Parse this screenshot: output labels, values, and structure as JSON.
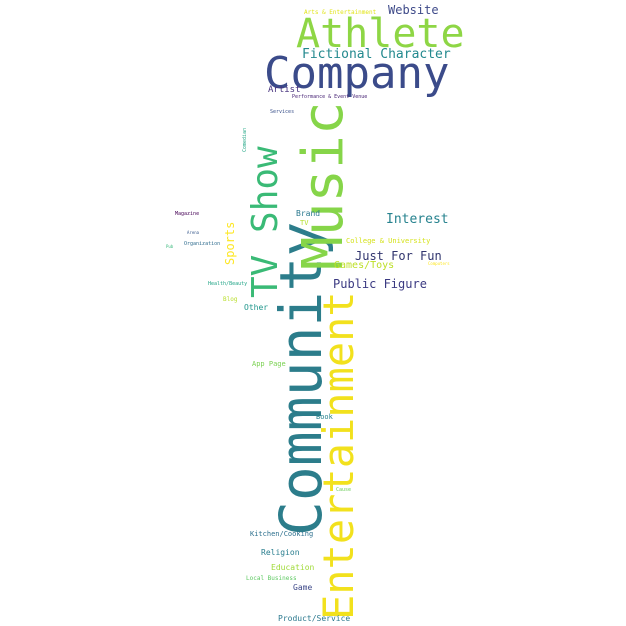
{
  "wordcloud": {
    "words": [
      {
        "text": "Community",
        "color": "#2c7d8b"
      },
      {
        "text": "Entertainment",
        "color": "#f2e11d"
      },
      {
        "text": "Music",
        "color": "#86d549"
      },
      {
        "text": "Company",
        "color": "#3b4b8a"
      },
      {
        "text": "Athlete",
        "color": "#8ed645"
      },
      {
        "text": "TV Show",
        "color": "#3aba76"
      },
      {
        "text": "Fictional Character",
        "color": "#23898e"
      },
      {
        "text": "Website",
        "color": "#3e4a89"
      },
      {
        "text": "Arts & Entertainment",
        "color": "#e2e418"
      },
      {
        "text": "Artist",
        "color": "#46327e"
      },
      {
        "text": "Performance & Event Venue",
        "color": "#482475"
      },
      {
        "text": "Services",
        "color": "#3b528b"
      },
      {
        "text": "Comedian",
        "color": "#21a685"
      },
      {
        "text": "Interest",
        "color": "#26828e"
      },
      {
        "text": "Just For Fun",
        "color": "#31356e"
      },
      {
        "text": "Public Figure",
        "color": "#3b3a82"
      },
      {
        "text": "Games/Toys",
        "color": "#bddf26"
      },
      {
        "text": "College & University",
        "color": "#d5e21a"
      },
      {
        "text": "Brand",
        "color": "#2a788e"
      },
      {
        "text": "TV",
        "color": "#b5de2b"
      },
      {
        "text": "Sports",
        "color": "#fde725"
      },
      {
        "text": "Magazine",
        "color": "#440154"
      },
      {
        "text": "Arena",
        "color": "#38598c"
      },
      {
        "text": "Organization",
        "color": "#2f6c8e"
      },
      {
        "text": "Pub",
        "color": "#35b779"
      },
      {
        "text": "Health/Beauty",
        "color": "#20a486"
      },
      {
        "text": "Blog",
        "color": "#b8de29"
      },
      {
        "text": "Other",
        "color": "#1f968b"
      },
      {
        "text": "Computers",
        "color": "#fde725"
      },
      {
        "text": "App Page",
        "color": "#7ad151"
      },
      {
        "text": "Book",
        "color": "#26828e"
      },
      {
        "text": "Cause",
        "color": "#6ccd5a"
      },
      {
        "text": "Kitchen/Cooking",
        "color": "#2d708e"
      },
      {
        "text": "Religion",
        "color": "#287d8e"
      },
      {
        "text": "Education",
        "color": "#a0da39"
      },
      {
        "text": "Local Business",
        "color": "#5ec962"
      },
      {
        "text": "Game",
        "color": "#3e4989"
      },
      {
        "text": "Product/Service",
        "color": "#2a788e"
      }
    ]
  }
}
